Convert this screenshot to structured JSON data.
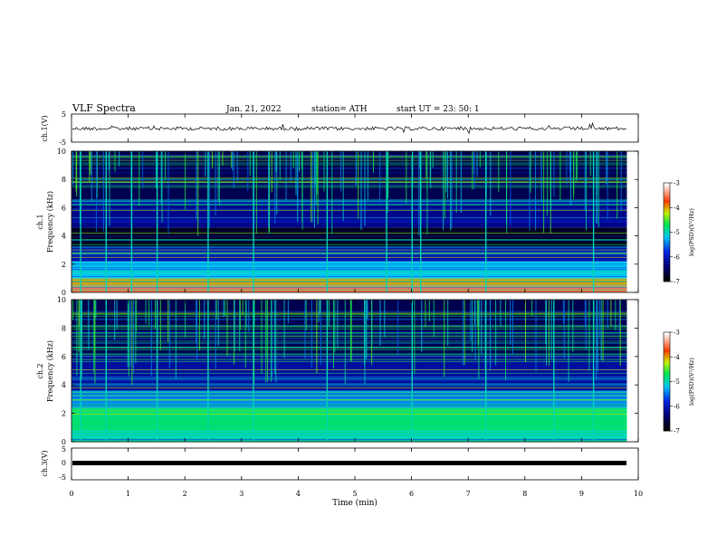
{
  "header": {
    "title": "VLF  Spectra",
    "date": "Jan. 21, 2022",
    "station": "station= ATH",
    "start": "start  UT  =    23: 50: 1"
  },
  "chart_data": [
    {
      "type": "line",
      "panel": "ch1-waveform",
      "ylabel": "ch.1(V)",
      "yticks": [
        "5",
        "-5"
      ],
      "ylim": [
        -5,
        5
      ],
      "xlim": [
        0,
        10
      ],
      "baseline": 0,
      "trace_color": "#000000"
    },
    {
      "type": "heatmap",
      "panel": "ch1-spectrogram",
      "ylabel": "ch.1\nFrequency  (kHz)",
      "ylabel_line1": "ch.1",
      "ylabel_line2": "Frequency  (kHz)",
      "yticks": [
        "0",
        "2",
        "4",
        "6",
        "8",
        "10"
      ],
      "ylim": [
        0,
        10
      ],
      "xlim": [
        0,
        9.8
      ],
      "xlim_label": "Time (min)",
      "bands": [
        {
          "f0": 0.0,
          "f1": 0.5,
          "level": -3.5
        },
        {
          "f0": 0.5,
          "f1": 1.0,
          "level": -4.0
        },
        {
          "f0": 1.0,
          "f1": 2.2,
          "level": -5.2
        },
        {
          "f0": 2.2,
          "f1": 3.2,
          "level": -6.1
        },
        {
          "f0": 3.2,
          "f1": 4.6,
          "level": -6.8
        },
        {
          "f0": 4.6,
          "f1": 6.5,
          "level": -6.3
        },
        {
          "f0": 6.5,
          "f1": 10.0,
          "level": -6.6
        }
      ],
      "sferics_min": [
        0.15,
        0.6,
        1.05,
        1.5,
        2.4,
        3.2,
        4.5,
        5.55,
        6.0,
        6.15,
        7.3,
        9.2
      ],
      "colorbar": {
        "label": "log(PSD)(V²/Hz)",
        "ticks": [
          "-3",
          "-4",
          "-5",
          "-6",
          "-7"
        ],
        "range": [
          -7,
          -3
        ]
      }
    },
    {
      "type": "heatmap",
      "panel": "ch2-spectrogram",
      "ylabel": "ch.2\nFrequency  (kHz)",
      "ylabel_line1": "ch.2",
      "ylabel_line2": "Frequency  (kHz)",
      "yticks": [
        "0",
        "2",
        "4",
        "6",
        "8",
        "10"
      ],
      "ylim": [
        0,
        10
      ],
      "xlim": [
        0,
        9.8
      ],
      "bands": [
        {
          "f0": 0.0,
          "f1": 0.8,
          "level": -5.0
        },
        {
          "f0": 0.8,
          "f1": 2.4,
          "level": -4.8
        },
        {
          "f0": 2.4,
          "f1": 3.6,
          "level": -5.4
        },
        {
          "f0": 3.6,
          "f1": 6.0,
          "level": -6.2
        },
        {
          "f0": 6.0,
          "f1": 10.0,
          "level": -6.6
        }
      ],
      "sferics_min": [
        0.15,
        0.6,
        1.5,
        2.4,
        3.2,
        4.5,
        6.0,
        7.3,
        8.5,
        9.2
      ],
      "colorbar": {
        "label": "log(PSD)(V²/Hz)",
        "ticks": [
          "-3",
          "-4",
          "-5",
          "-6",
          "-7"
        ],
        "range": [
          -7,
          -3
        ]
      }
    },
    {
      "type": "line",
      "panel": "ch3-waveform",
      "ylabel": "ch.3(V)",
      "yticks": [
        "5",
        "0",
        "-5"
      ],
      "ylim": [
        -5,
        5
      ],
      "xlim": [
        0,
        10
      ],
      "baseline": 0,
      "trace_color": "#000000",
      "xlabel": "Time  (min)",
      "xticks": [
        "0",
        "1",
        "2",
        "3",
        "4",
        "5",
        "6",
        "7",
        "8",
        "9",
        "10"
      ]
    }
  ]
}
